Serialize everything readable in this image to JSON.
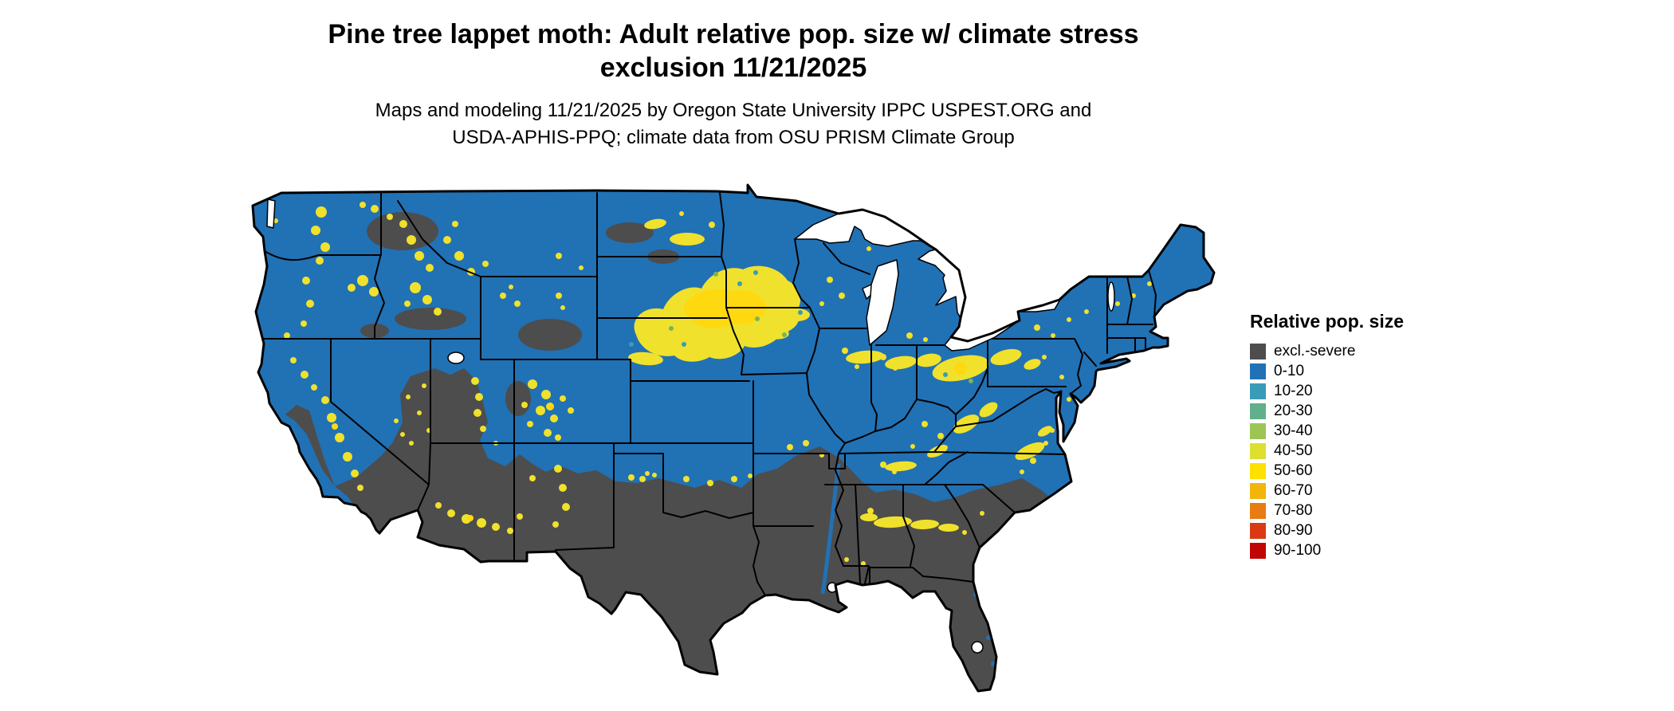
{
  "header": {
    "title_line1": "Pine tree lappet moth: Adult relative pop. size w/ climate stress",
    "title_line2": "exclusion 11/21/2025",
    "subtitle_line1": "Maps and modeling 11/21/2025 by Oregon State University IPPC USPEST.ORG and",
    "subtitle_line2": "USDA-APHIS-PPQ; climate data from OSU PRISM Climate Group"
  },
  "legend": {
    "title": "Relative pop. size",
    "items": [
      {
        "label": "excl.-severe",
        "color": "#4d4d4d"
      },
      {
        "label": "0-10",
        "color": "#2171b5"
      },
      {
        "label": "10-20",
        "color": "#3a9bb7"
      },
      {
        "label": "20-30",
        "color": "#62b08b"
      },
      {
        "label": "30-40",
        "color": "#9cc653"
      },
      {
        "label": "40-50",
        "color": "#dde02f"
      },
      {
        "label": "50-60",
        "color": "#ffe100"
      },
      {
        "label": "60-70",
        "color": "#f2b50c"
      },
      {
        "label": "70-80",
        "color": "#e87b12"
      },
      {
        "label": "80-90",
        "color": "#d93a14"
      },
      {
        "label": "90-100",
        "color": "#c00505"
      }
    ]
  },
  "map": {
    "colors": {
      "base": "#2171b5",
      "excluded": "#4d4d4d",
      "hotspot": "#f0e12c",
      "hotspot_bright": "#ffd90f",
      "water": "#ffffff",
      "border": "#000000"
    }
  }
}
